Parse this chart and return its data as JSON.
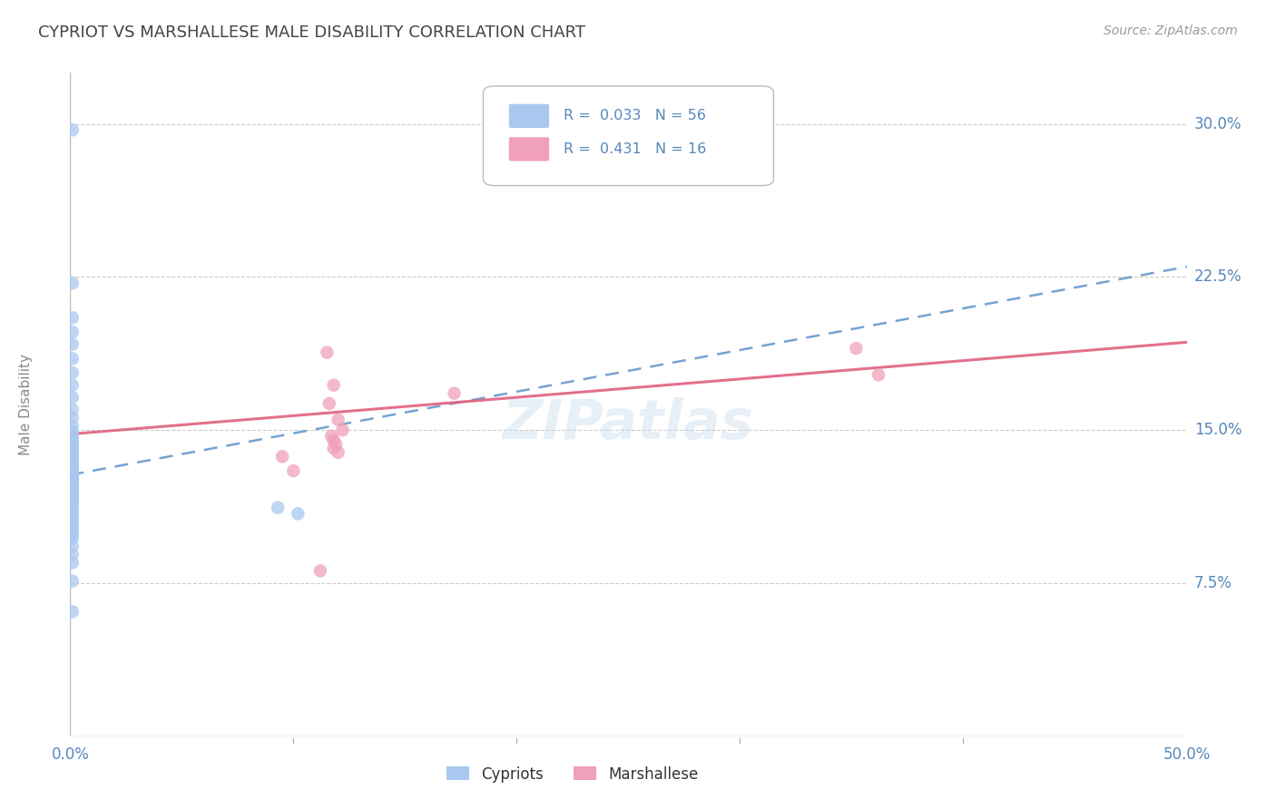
{
  "title": "CYPRIOT VS MARSHALLESE MALE DISABILITY CORRELATION CHART",
  "source": "Source: ZipAtlas.com",
  "ylabel_label": "Male Disability",
  "xlim": [
    0.0,
    0.5
  ],
  "ylim": [
    0.0,
    0.325
  ],
  "cypriot_R": 0.033,
  "cypriot_N": 56,
  "marshallese_R": 0.431,
  "marshallese_N": 16,
  "cypriot_color": "#A8C8F0",
  "marshallese_color": "#F0A0B8",
  "cypriot_line_color": "#6699CC",
  "marshallese_line_color": "#E06080",
  "background_color": "#FFFFFF",
  "grid_color": "#CCCCCC",
  "title_color": "#444444",
  "tick_label_color": "#5588BB",
  "watermark": "ZIPatlas",
  "cy_line_x0": 0.0,
  "cy_line_y0": 0.128,
  "cy_line_x1": 0.5,
  "cy_line_y1": 0.23,
  "ma_line_x0": 0.0,
  "ma_line_y0": 0.148,
  "ma_line_x1": 0.5,
  "ma_line_y1": 0.193,
  "cypriot_x": [
    0.001,
    0.001,
    0.001,
    0.001,
    0.001,
    0.001,
    0.001,
    0.001,
    0.001,
    0.001,
    0.001,
    0.001,
    0.001,
    0.001,
    0.001,
    0.001,
    0.001,
    0.001,
    0.001,
    0.001,
    0.001,
    0.001,
    0.001,
    0.001,
    0.001,
    0.001,
    0.001,
    0.001,
    0.001,
    0.001,
    0.001,
    0.001,
    0.001,
    0.001,
    0.001,
    0.001,
    0.001,
    0.001,
    0.001,
    0.001,
    0.001,
    0.001,
    0.001,
    0.001,
    0.001,
    0.001,
    0.001,
    0.001,
    0.001,
    0.001,
    0.001,
    0.001,
    0.093,
    0.102,
    0.001,
    0.001
  ],
  "cypriot_y": [
    0.297,
    0.222,
    0.205,
    0.198,
    0.192,
    0.185,
    0.178,
    0.172,
    0.166,
    0.16,
    0.156,
    0.152,
    0.149,
    0.147,
    0.145,
    0.143,
    0.142,
    0.14,
    0.139,
    0.137,
    0.136,
    0.135,
    0.133,
    0.132,
    0.13,
    0.129,
    0.128,
    0.127,
    0.126,
    0.125,
    0.124,
    0.123,
    0.122,
    0.121,
    0.12,
    0.119,
    0.118,
    0.117,
    0.116,
    0.115,
    0.113,
    0.111,
    0.109,
    0.107,
    0.105,
    0.103,
    0.101,
    0.099,
    0.097,
    0.093,
    0.089,
    0.085,
    0.112,
    0.109,
    0.076,
    0.061
  ],
  "marshallese_x": [
    0.115,
    0.118,
    0.116,
    0.12,
    0.122,
    0.118,
    0.095,
    0.1,
    0.352,
    0.362,
    0.112,
    0.117,
    0.119,
    0.118,
    0.12,
    0.172
  ],
  "marshallese_y": [
    0.188,
    0.172,
    0.163,
    0.155,
    0.15,
    0.145,
    0.137,
    0.13,
    0.19,
    0.177,
    0.081,
    0.147,
    0.143,
    0.141,
    0.139,
    0.168
  ]
}
